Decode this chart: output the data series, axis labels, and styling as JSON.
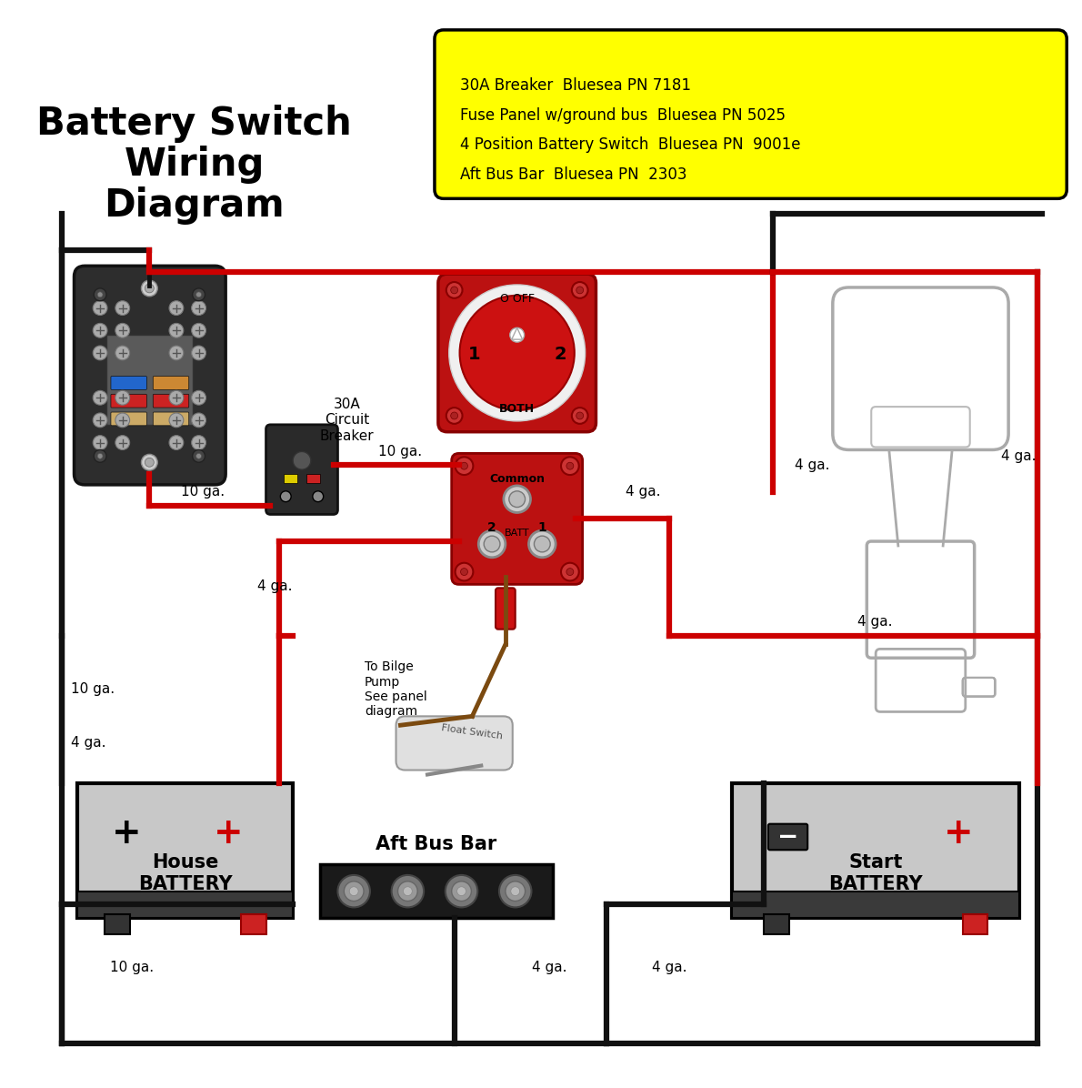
{
  "title": "Battery Switch\nWiring\nDiagram",
  "bg_color": "#ffffff",
  "wire_color_black": "#111111",
  "wire_color_red": "#cc0000",
  "wire_color_brown": "#7B4A10",
  "wire_lw": 4.5,
  "legend_lines": [
    "30A Breaker  Bluesea PN 7181",
    "Fuse Panel w/ground bus  Bluesea PN 5025",
    "4 Position Battery Switch  Bluesea PN  9001e",
    "Aft Bus Bar  Bluesea PN  2303"
  ]
}
